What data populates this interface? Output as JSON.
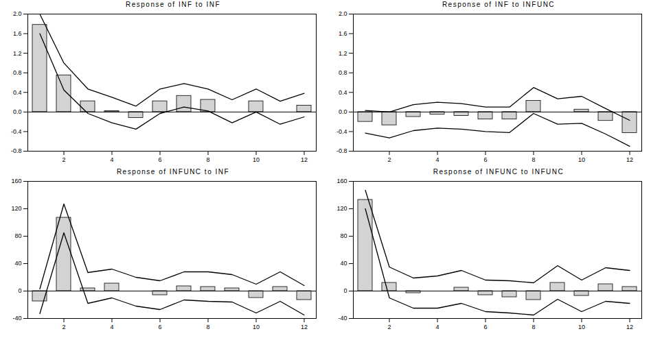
{
  "chart_data": [
    {
      "type": "bar",
      "title": "Response of INF to INF",
      "x": [
        1,
        2,
        3,
        4,
        5,
        6,
        7,
        8,
        9,
        10,
        11,
        12
      ],
      "values": [
        1.78,
        0.75,
        0.22,
        0.02,
        -0.12,
        0.22,
        0.33,
        0.25,
        0.0,
        0.22,
        0.0,
        0.13
      ],
      "upper": [
        2.0,
        1.0,
        0.47,
        0.3,
        0.12,
        0.47,
        0.58,
        0.47,
        0.25,
        0.47,
        0.22,
        0.38
      ],
      "lower": [
        1.6,
        0.45,
        -0.03,
        -0.22,
        -0.35,
        -0.03,
        0.1,
        0.02,
        -0.22,
        0.0,
        -0.25,
        -0.1
      ],
      "color": "#d3d3d3",
      "xlim": [
        0.5,
        12.5
      ],
      "xticks": [
        2,
        4,
        6,
        8,
        10,
        12
      ],
      "ylim": [
        -0.8,
        2.0
      ],
      "yticks": [
        -0.8,
        -0.4,
        {
          "value": 0,
          "label": "0.0"
        },
        0.4,
        0.8,
        1.2,
        1.6,
        {
          "value": 2,
          "label": "2.0"
        }
      ],
      "grid": false
    },
    {
      "type": "bar",
      "title": "Response of INF to INFUNC",
      "x": [
        1,
        2,
        3,
        4,
        5,
        6,
        7,
        8,
        9,
        10,
        11,
        12
      ],
      "values": [
        -0.2,
        -0.27,
        -0.1,
        -0.05,
        -0.08,
        -0.15,
        -0.15,
        0.23,
        0.0,
        0.05,
        -0.18,
        -0.43
      ],
      "upper": [
        0.03,
        0.0,
        0.15,
        0.2,
        0.17,
        0.1,
        0.1,
        0.5,
        0.27,
        0.32,
        0.07,
        -0.17
      ],
      "lower": [
        -0.43,
        -0.53,
        -0.38,
        -0.33,
        -0.35,
        -0.4,
        -0.42,
        -0.03,
        -0.25,
        -0.23,
        -0.45,
        -0.7
      ],
      "color": "#d3d3d3",
      "xlim": [
        0.5,
        12.5
      ],
      "xticks": [
        2,
        4,
        6,
        8,
        10,
        12
      ],
      "ylim": [
        -0.8,
        2.0
      ],
      "yticks": [
        -0.8,
        -0.4,
        {
          "value": 0,
          "label": "0.0"
        },
        0.4,
        0.8,
        1.2,
        1.6,
        {
          "value": 2,
          "label": "2.0"
        }
      ],
      "grid": false
    },
    {
      "type": "bar",
      "title": "Response of INFUNC to INF",
      "x": [
        1,
        2,
        3,
        4,
        5,
        6,
        7,
        8,
        9,
        10,
        11,
        12
      ],
      "values": [
        -15,
        107,
        4,
        11,
        0,
        -6,
        7,
        6,
        4,
        -10,
        6,
        -13
      ],
      "upper": [
        3,
        127,
        27,
        32,
        20,
        15,
        28,
        28,
        24,
        10,
        28,
        8
      ],
      "lower": [
        -33,
        85,
        -18,
        -10,
        -22,
        -27,
        -13,
        -15,
        -16,
        -32,
        -15,
        -35
      ],
      "color": "#d3d3d3",
      "xlim": [
        0.5,
        12.5
      ],
      "xticks": [
        2,
        4,
        6,
        8,
        10,
        12
      ],
      "ylim": [
        -40,
        160
      ],
      "yticks": [
        -40,
        0,
        40,
        80,
        120,
        160
      ],
      "grid": false
    },
    {
      "type": "bar",
      "title": "Response of INFUNC to INFUNC",
      "x": [
        1,
        2,
        3,
        4,
        5,
        6,
        7,
        8,
        9,
        10,
        11,
        12
      ],
      "values": [
        133,
        12,
        -3,
        0,
        5,
        -6,
        -9,
        -13,
        12,
        -7,
        10,
        6
      ],
      "upper": [
        147,
        35,
        19,
        22,
        30,
        16,
        15,
        12,
        37,
        16,
        34,
        30
      ],
      "lower": [
        120,
        -10,
        -25,
        -25,
        -18,
        -30,
        -32,
        -35,
        -12,
        -30,
        -15,
        -18
      ],
      "color": "#d3d3d3",
      "xlim": [
        0.5,
        12.5
      ],
      "xticks": [
        2,
        4,
        6,
        8,
        10,
        12
      ],
      "ylim": [
        -40,
        160
      ],
      "yticks": [
        -40,
        0,
        40,
        80,
        120,
        160
      ],
      "grid": false
    }
  ]
}
